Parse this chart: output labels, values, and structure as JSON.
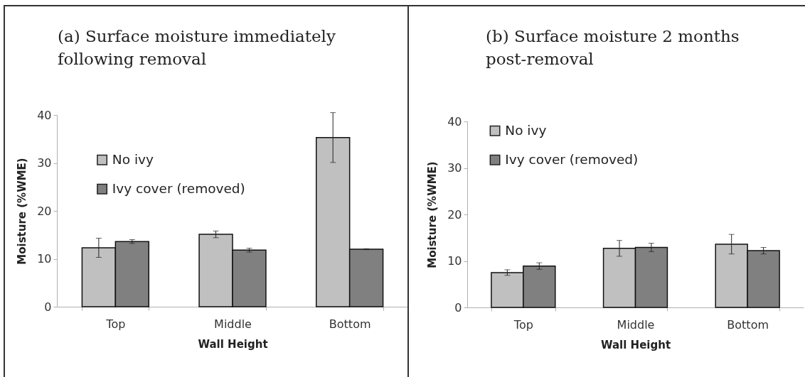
{
  "chart_data": [
    {
      "type": "bar",
      "title": "(a) Surface moisture immediately following removal",
      "xlabel": "Wall Height",
      "ylabel": "Moisture (%WME)",
      "categories": [
        "Top",
        "Middle",
        "Bottom"
      ],
      "series": [
        {
          "name": "No ivy",
          "color": "#c0c0c0",
          "values": [
            12.3,
            15.1,
            35.3
          ],
          "errors": [
            2.0,
            0.7,
            5.2
          ]
        },
        {
          "name": "Ivy cover (removed)",
          "color": "#808080",
          "values": [
            13.6,
            11.8,
            12.0
          ],
          "errors": [
            0.4,
            0.4,
            0.1
          ]
        }
      ],
      "ylim": [
        0,
        40
      ],
      "yticks": [
        0,
        10,
        20,
        30,
        40
      ],
      "legend": "left"
    },
    {
      "type": "bar",
      "title": "(b) Surface moisture 2 months post-removal",
      "xlabel": "Wall Height",
      "ylabel": "Moisture (%WME)",
      "categories": [
        "Top",
        "Middle",
        "Bottom"
      ],
      "series": [
        {
          "name": "No ivy",
          "color": "#c0c0c0",
          "values": [
            7.5,
            12.7,
            13.6
          ],
          "errors": [
            0.6,
            1.7,
            2.1
          ]
        },
        {
          "name": "Ivy cover (removed)",
          "color": "#808080",
          "values": [
            8.9,
            12.9,
            12.2
          ],
          "errors": [
            0.7,
            0.9,
            0.7
          ]
        }
      ],
      "ylim": [
        0,
        40
      ],
      "yticks": [
        0,
        10,
        20,
        30,
        40
      ],
      "legend": "top left"
    }
  ]
}
